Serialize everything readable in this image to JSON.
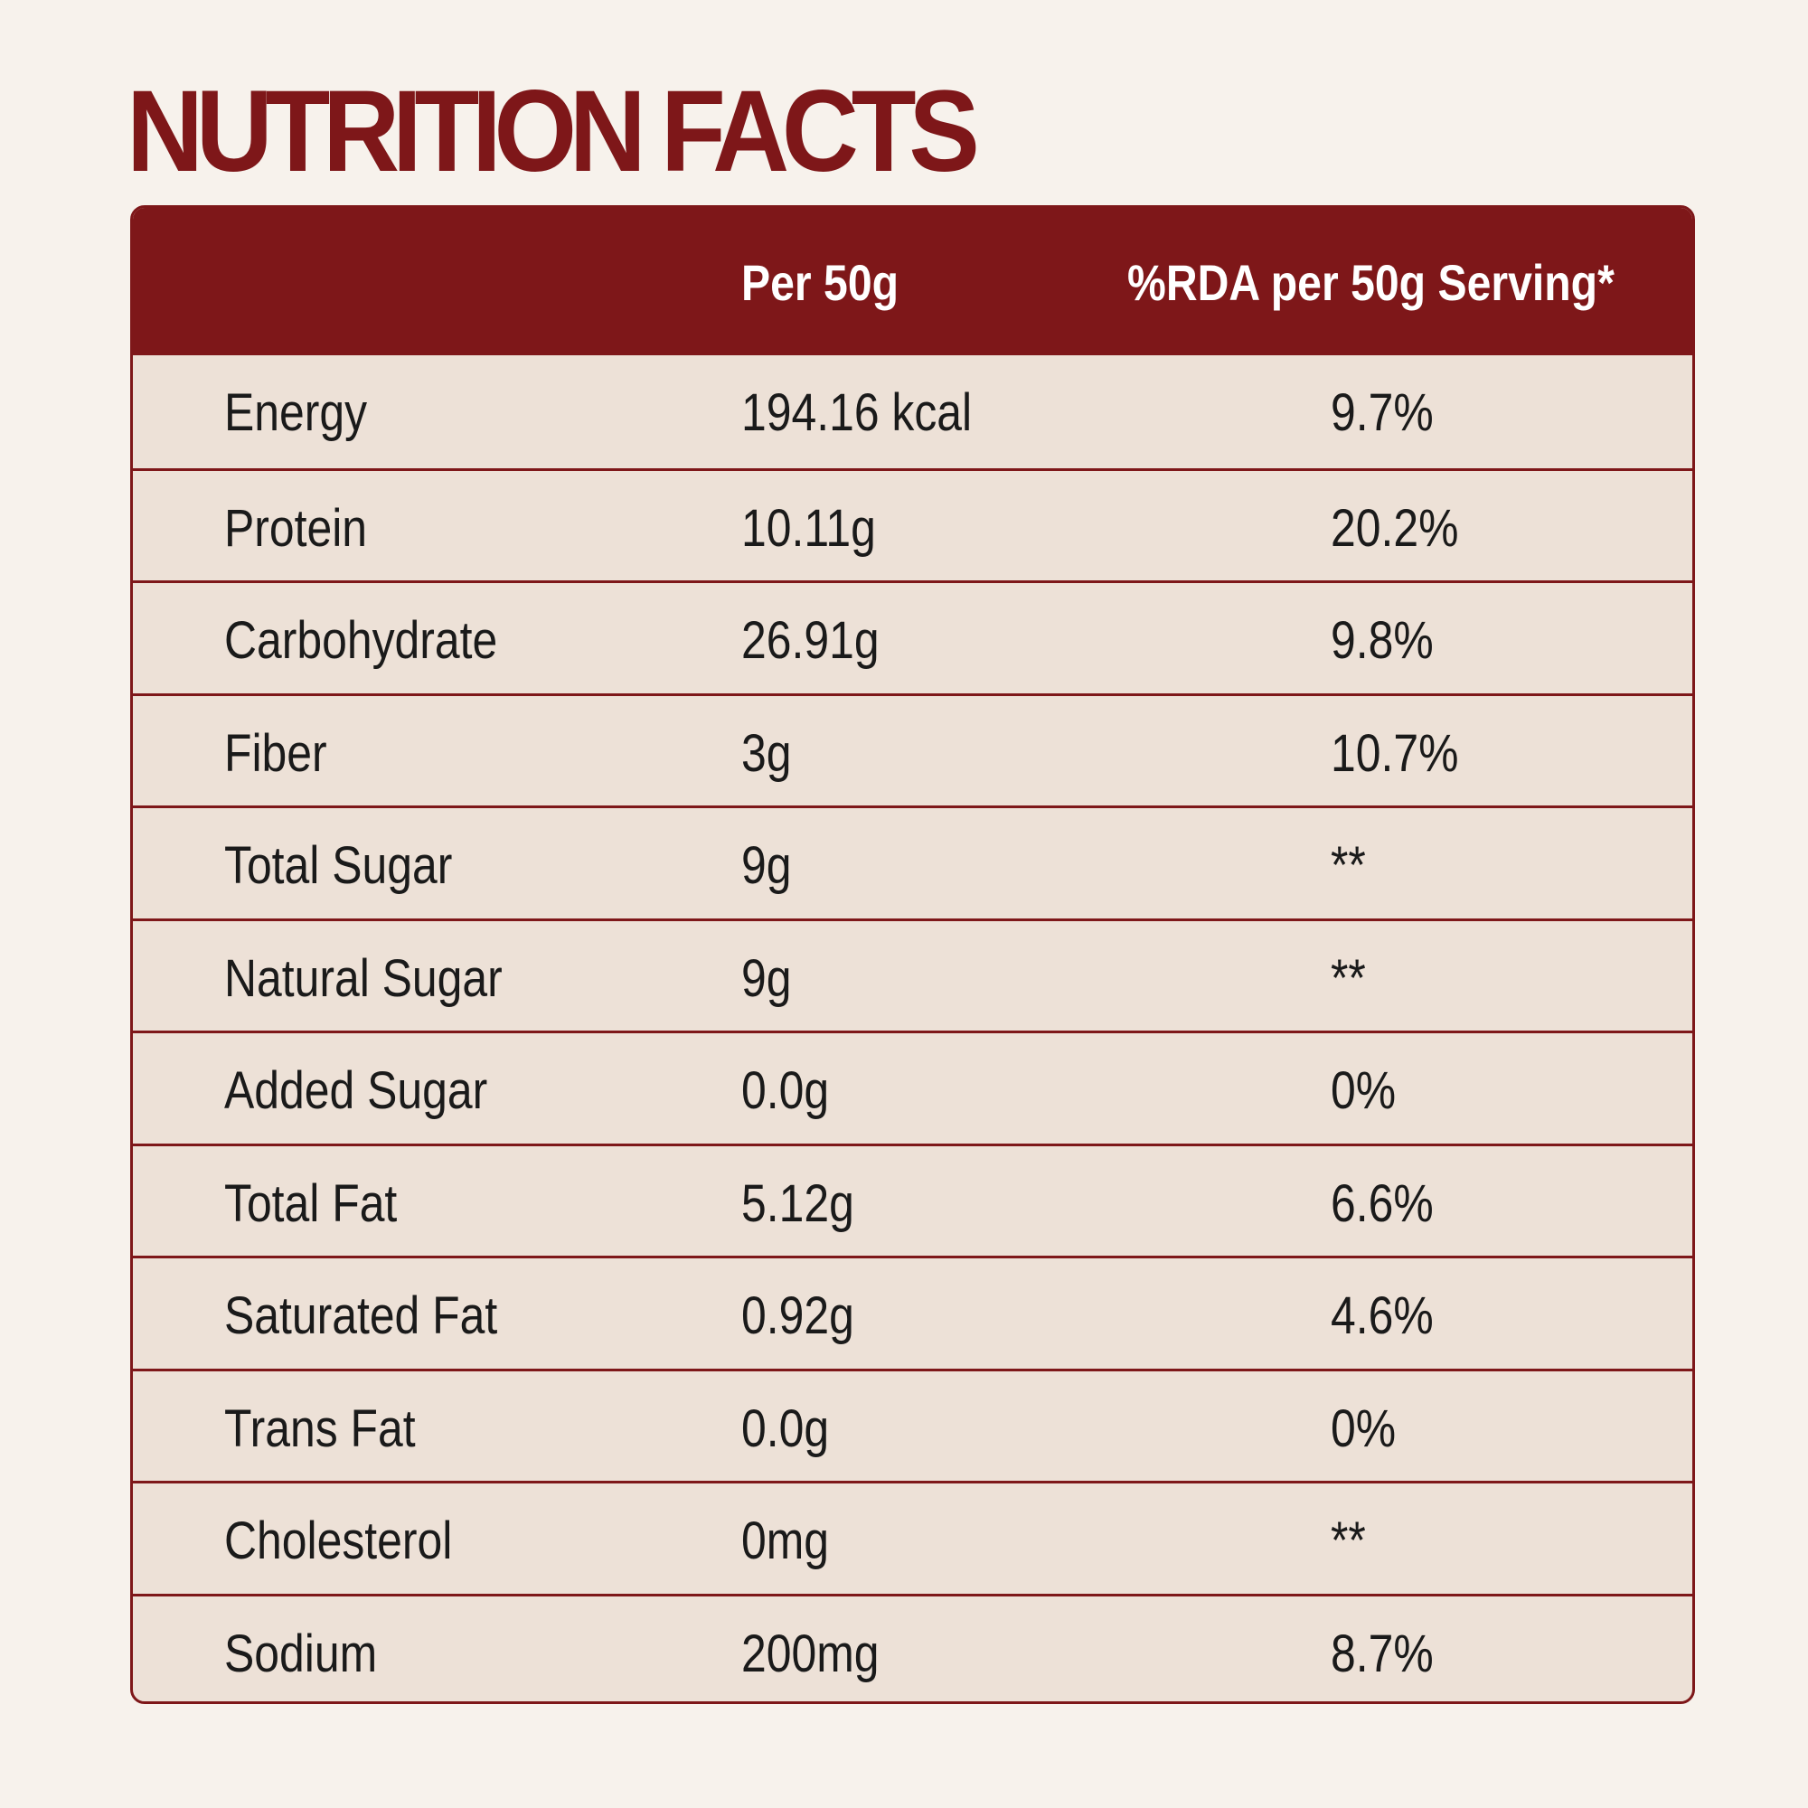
{
  "title": "NUTRITION FACTS",
  "table": {
    "header": [
      "Per 50g",
      "%RDA per 50g Serving*"
    ],
    "rows": [
      [
        "Energy",
        "194.16 kcal",
        "9.7%"
      ],
      [
        "Protein",
        "10.11g",
        "20.2%"
      ],
      [
        "Carbohydrate",
        "26.91g",
        "9.8%"
      ],
      [
        "Fiber",
        "3g",
        "10.7%"
      ],
      [
        "Total Sugar",
        "9g",
        "**"
      ],
      [
        "Natural Sugar",
        "9g",
        "**"
      ],
      [
        "Added Sugar",
        "0.0g",
        "0%"
      ],
      [
        "Total Fat",
        "5.12g",
        "6.6%"
      ],
      [
        "Saturated Fat",
        "0.92g",
        "4.6%"
      ],
      [
        "Trans Fat",
        "0.0g",
        "0%"
      ],
      [
        "Cholesterol",
        "0mg",
        "**"
      ],
      [
        "Sodium",
        "200mg",
        "8.7%"
      ]
    ]
  }
}
